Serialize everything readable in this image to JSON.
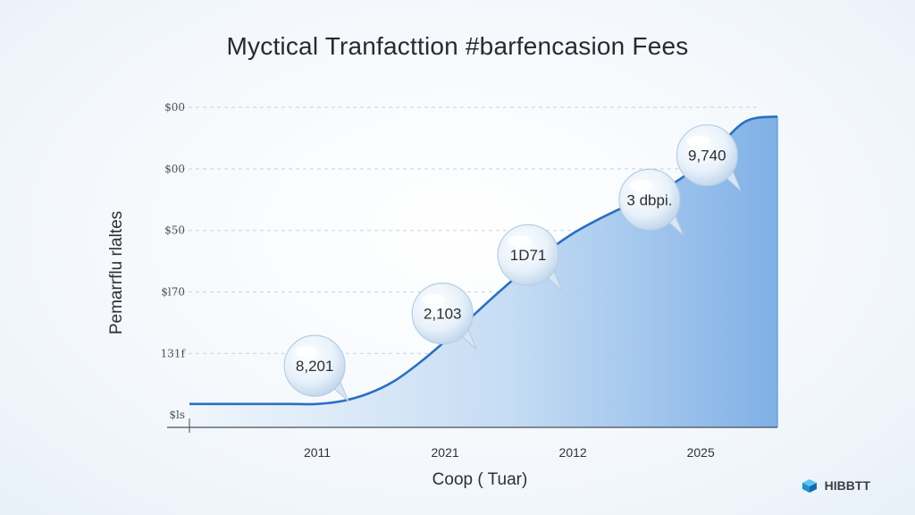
{
  "chart_data": {
    "type": "area",
    "title": "Myctical Tranfacttion  #barfencasion Fees",
    "xlabel": "Coop ( Tuar)",
    "ylabel": "Pemarrflu rlaltes",
    "x_tick_labels": [
      "2011",
      "2021",
      "2012",
      "2025"
    ],
    "y_tick_labels": [
      "$ls",
      "131f",
      "$l70",
      "$50",
      "$00",
      "$00"
    ],
    "y_levels": [
      0,
      1,
      2,
      3,
      4,
      5
    ],
    "ylim": [
      0,
      5.2
    ],
    "series": [
      {
        "x": [
          0,
          0.5,
          0.8,
          1.0,
          1.2,
          1.4,
          1.6,
          1.8,
          2.0,
          2.2,
          2.4,
          2.6,
          2.8,
          3.0,
          3.2,
          3.4,
          3.6,
          3.85,
          4.1,
          4.35,
          4.6
        ],
        "y": [
          0.38,
          0.38,
          0.38,
          0.38,
          0.43,
          0.55,
          0.75,
          1.05,
          1.4,
          1.78,
          2.16,
          2.52,
          2.86,
          3.15,
          3.38,
          3.58,
          3.76,
          4.05,
          4.48,
          4.97,
          5.05
        ]
      }
    ],
    "annotations": [
      {
        "text": "8,201",
        "x": 0.98,
        "y": 1.0
      },
      {
        "text": "2,103",
        "x": 1.98,
        "y": 1.85
      },
      {
        "text": "1D71",
        "x": 2.65,
        "y": 2.8
      },
      {
        "text": "3 dbpi.",
        "x": 3.6,
        "y": 3.7
      },
      {
        "text": "9,740",
        "x": 4.05,
        "y": 4.42
      }
    ],
    "grid": true,
    "colors": {
      "line": "#2a6fc1",
      "fill_top": "#8ab8ea",
      "fill_bottom": "#e4effa",
      "grid": "#c9d2dc"
    }
  },
  "brand": {
    "name": "HIBBTT",
    "icon": "cube-icon",
    "color": "#1f8fd6"
  }
}
